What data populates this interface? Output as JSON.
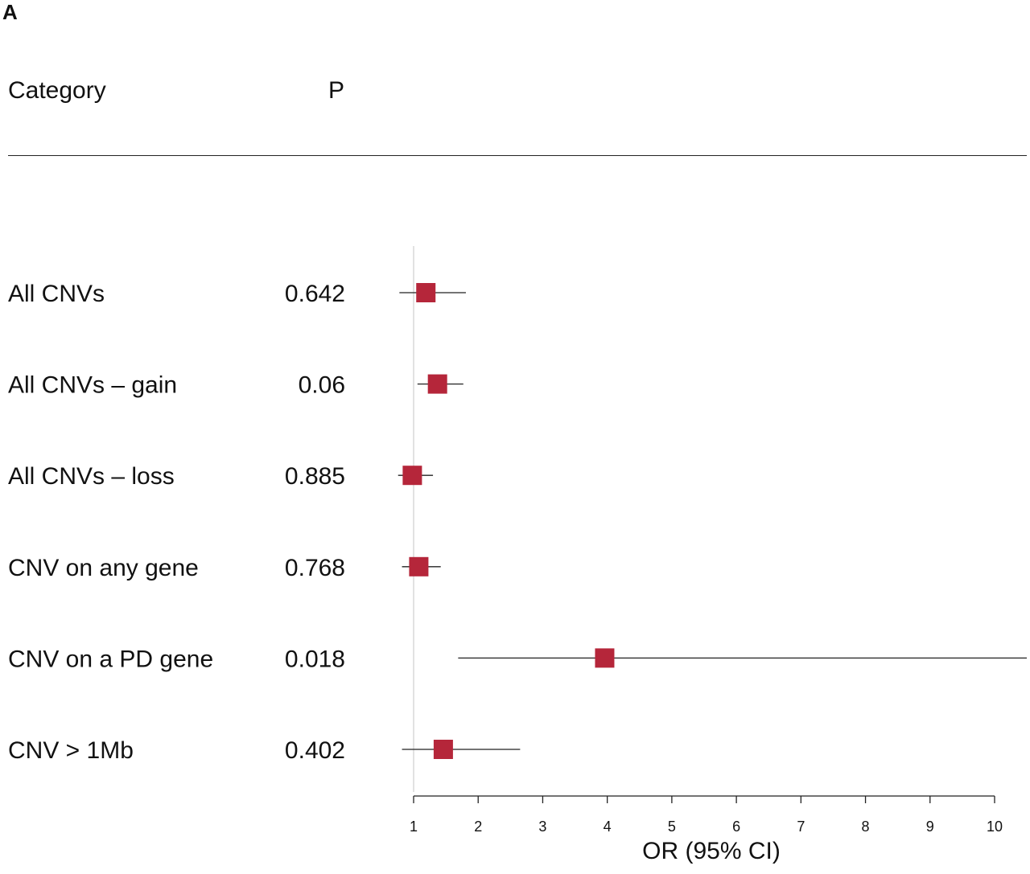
{
  "panel_label": "A",
  "headers": {
    "category": "Category",
    "p": "P"
  },
  "chart_data": {
    "type": "forest",
    "xlabel": "OR (95% CI)",
    "xlim": [
      1,
      10
    ],
    "xticks": [
      "1",
      "2",
      "3",
      "4",
      "5",
      "6",
      "7",
      "8",
      "9",
      "10"
    ],
    "reference_line": 1,
    "point_color": "#b5263a",
    "rows": [
      {
        "category": "All CNVs",
        "p": "0.642",
        "or": 1.19,
        "ci": [
          0.78,
          1.81
        ]
      },
      {
        "category": "All CNVs – gain",
        "p": "0.06",
        "or": 1.37,
        "ci": [
          1.06,
          1.77
        ]
      },
      {
        "category": "All CNVs – loss",
        "p": "0.885",
        "or": 0.98,
        "ci": [
          0.76,
          1.3
        ]
      },
      {
        "category": "CNV on any gene",
        "p": "0.768",
        "or": 1.08,
        "ci": [
          0.82,
          1.42
        ]
      },
      {
        "category": "CNV on a PD gene",
        "p": "0.018",
        "or": 3.96,
        "ci": [
          1.69,
          10.5
        ]
      },
      {
        "category": "CNV > 1Mb",
        "p": "0.402",
        "or": 1.46,
        "ci": [
          0.82,
          2.65
        ]
      }
    ]
  }
}
